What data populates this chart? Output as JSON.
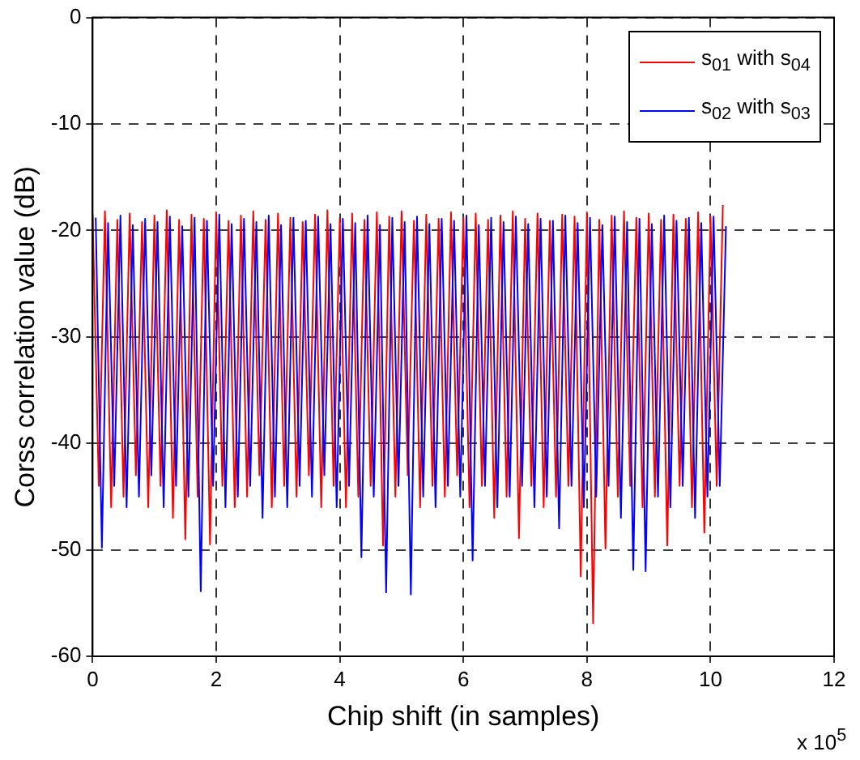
{
  "chart_data": {
    "type": "line",
    "xlabel": "Chip shift (in samples)",
    "ylabel": "Corss correlation value (dB)",
    "annotations": [
      "x 10$^{5}$"
    ],
    "xlim": [
      0,
      12
    ],
    "xticks": [
      0,
      2,
      4,
      6,
      8,
      10,
      12
    ],
    "ylim": [
      -60,
      0
    ],
    "yticks": [
      -60,
      -50,
      -40,
      -30,
      -20,
      -10,
      0
    ],
    "grid": true,
    "legend": "top right",
    "x": [
      0,
      0.1,
      0.2,
      0.3,
      0.4,
      0.5,
      0.6,
      0.7,
      0.8,
      0.9,
      1,
      1.1,
      1.2,
      1.3,
      1.4,
      1.5,
      1.6,
      1.7,
      1.8,
      1.9,
      2,
      2.1,
      2.2,
      2.3,
      2.4,
      2.5,
      2.6,
      2.7,
      2.8,
      2.9,
      3,
      3.1,
      3.2,
      3.3,
      3.4,
      3.5,
      3.6,
      3.7,
      3.8,
      3.9,
      4,
      4.1,
      4.2,
      4.3,
      4.4,
      4.5,
      4.6,
      4.7,
      4.8,
      4.9,
      5,
      5.1,
      5.2,
      5.3,
      5.4,
      5.5,
      5.6,
      5.7,
      5.8,
      5.9,
      6,
      6.1,
      6.2,
      6.3,
      6.4,
      6.5,
      6.6,
      6.7,
      6.8,
      6.9,
      7,
      7.1,
      7.2,
      7.3,
      7.4,
      7.5,
      7.6,
      7.7,
      7.8,
      7.9,
      8,
      8.1,
      8.2,
      8.3,
      8.4,
      8.5,
      8.6,
      8.7,
      8.8,
      8.9,
      9,
      9.1,
      9.2,
      9.3,
      9.4,
      9.5,
      9.6,
      9.7,
      9.8,
      9.9,
      10,
      10.1,
      10.2
    ],
    "series": [
      {
        "name": "s$_{01}$ with s$_{04}$",
        "color": "#ff0000",
        "values": [
          -18.5,
          -44,
          -18.2,
          -46,
          -19,
          -45,
          -18.4,
          -43,
          -19.2,
          -46,
          -18.6,
          -44,
          -18.1,
          -47,
          -19,
          -49,
          -18.5,
          -45,
          -18.9,
          -49.5,
          -18.3,
          -44,
          -19.1,
          -46,
          -18.6,
          -45,
          -18.2,
          -43,
          -19,
          -46,
          -18.4,
          -44,
          -18.8,
          -45,
          -19.2,
          -43,
          -18.5,
          -46,
          -18.1,
          -44,
          -18.9,
          -46,
          -18.4,
          -45,
          -19,
          -44,
          -18.3,
          -49.6,
          -18.7,
          -45,
          -18.2,
          -43,
          -19.1,
          -46,
          -18.5,
          -44,
          -18.9,
          -45,
          -18.3,
          -43,
          -18.8,
          -46,
          -18.4,
          -44,
          -19,
          -47,
          -18.6,
          -45,
          -18.2,
          -48.9,
          -18.9,
          -44,
          -18.4,
          -46,
          -19.1,
          -45,
          -18.5,
          -44,
          -18.7,
          -52.5,
          -18.3,
          -56.9,
          -19,
          -49.9,
          -18.6,
          -45,
          -18.2,
          -44,
          -18.8,
          -46,
          -18.4,
          -45,
          -19,
          -49.6,
          -18.5,
          -44,
          -18.9,
          -46,
          -18.3,
          -48.4,
          -18.7,
          -44,
          -17.6
        ]
      },
      {
        "name": "s$_{02}$ with s$_{03}$",
        "color": "#0000ff",
        "x": [
          0.05,
          0.15,
          0.25,
          0.35,
          0.45,
          0.55,
          0.65,
          0.75,
          0.85,
          0.95,
          1.05,
          1.15,
          1.25,
          1.35,
          1.45,
          1.55,
          1.65,
          1.75,
          1.85,
          1.95,
          2.05,
          2.15,
          2.25,
          2.35,
          2.45,
          2.55,
          2.65,
          2.75,
          2.85,
          2.95,
          3.05,
          3.15,
          3.25,
          3.35,
          3.45,
          3.55,
          3.65,
          3.75,
          3.85,
          3.95,
          4.05,
          4.15,
          4.25,
          4.35,
          4.45,
          4.55,
          4.65,
          4.75,
          4.85,
          4.95,
          5.05,
          5.15,
          5.25,
          5.35,
          5.45,
          5.55,
          5.65,
          5.75,
          5.85,
          5.95,
          6.05,
          6.15,
          6.25,
          6.35,
          6.45,
          6.55,
          6.65,
          6.75,
          6.85,
          6.95,
          7.05,
          7.15,
          7.25,
          7.35,
          7.45,
          7.55,
          7.65,
          7.75,
          7.85,
          7.95,
          8.05,
          8.15,
          8.25,
          8.35,
          8.45,
          8.55,
          8.65,
          8.75,
          8.85,
          8.95,
          9.05,
          9.15,
          9.25,
          9.35,
          9.45,
          9.55,
          9.65,
          9.75,
          9.85,
          9.95,
          10.05,
          10.15,
          10.25
        ],
        "values": [
          -18.8,
          -49.8,
          -19.3,
          -44,
          -18.6,
          -46,
          -19.5,
          -45,
          -18.9,
          -43,
          -19.2,
          -46,
          -18.7,
          -44,
          -19.6,
          -45,
          -18.8,
          -53.9,
          -19.1,
          -44,
          -18.5,
          -46,
          -19.4,
          -45,
          -18.9,
          -44,
          -19.2,
          -47,
          -18.6,
          -45,
          -19.5,
          -46,
          -18.8,
          -44,
          -19.1,
          -45,
          -18.7,
          -43,
          -19.4,
          -46,
          -18.9,
          -44,
          -19.3,
          -50.7,
          -18.6,
          -45,
          -19.5,
          -54,
          -18.8,
          -44,
          -19.2,
          -54.2,
          -18.7,
          -45,
          -19.4,
          -46,
          -18.9,
          -44,
          -19.1,
          -45,
          -18.6,
          -51,
          -19.5,
          -44,
          -18.8,
          -46,
          -19.2,
          -45,
          -18.7,
          -44,
          -19.4,
          -46,
          -18.9,
          -45,
          -19.1,
          -48,
          -18.6,
          -44,
          -19.3,
          -46,
          -18.8,
          -45,
          -19.5,
          -44,
          -18.7,
          -47,
          -19.2,
          -51.9,
          -18.9,
          -52,
          -19.4,
          -45,
          -18.6,
          -46,
          -19.1,
          -44,
          -18.8,
          -47,
          -19.3,
          -45,
          -18.7,
          -44,
          -19.6
        ]
      }
    ]
  }
}
